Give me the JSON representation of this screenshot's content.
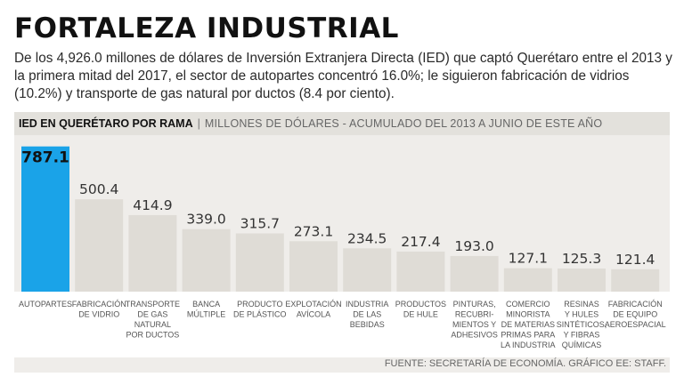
{
  "title": "FORTALEZA INDUSTRIAL",
  "subtitle": "De los 4,926.0 millones de dólares de Inversión Extranjera Directa (IED) que captó Querétaro entre el 2013 y la primera mitad del 2017, el sector de autopartes concentró 16.0%; le siguieron fabricación de vidrios (10.2%) y transporte de gas natural por ductos (8.4 por ciento).",
  "header": {
    "bold": "IED EN QUERÉTARO POR RAMA",
    "separator": "|",
    "light": "MILLONES DE DÓLARES - ACUMULADO DEL 2013 A JUNIO DE ESTE AÑO"
  },
  "colors": {
    "highlight": "#1aa3e8",
    "bar": "#dfdcd6",
    "background": "#efedea"
  },
  "chart_data": {
    "type": "bar",
    "title": "IED en Querétaro por rama",
    "ylabel": "Millones de dólares",
    "ylim": [
      0,
      800
    ],
    "categories": [
      [
        "AUTOPARTES"
      ],
      [
        "FABRICACIÓN",
        "DE VIDRIO"
      ],
      [
        "TRANSPORTE",
        "DE GAS",
        "NATURAL",
        "POR DUCTOS"
      ],
      [
        "BANCA",
        "MÚLTIPLE"
      ],
      [
        "PRODUCTO",
        "DE PLÁSTICO"
      ],
      [
        "EXPLOTACIÓN",
        "AVÍCOLA"
      ],
      [
        "INDUSTRIA",
        "DE LAS",
        "BEBIDAS"
      ],
      [
        "PRODUCTOS",
        "DE HULE"
      ],
      [
        "PINTURAS,",
        "RECUBRI-",
        "MIENTOS Y",
        "ADHESIVOS"
      ],
      [
        "COMERCIO",
        "MINORISTA",
        "DE MATERIAS",
        "PRIMAS PARA",
        "LA INDUSTRIA"
      ],
      [
        "RESINAS",
        "Y HULES",
        "SINTÉTICOS,",
        "Y FIBRAS",
        "QUÍMICAS"
      ],
      [
        "FABRICACIÓN",
        "DE EQUIPO",
        "AEROESPACIAL"
      ]
    ],
    "values": [
      787.1,
      500.4,
      414.9,
      339.0,
      315.7,
      273.1,
      234.5,
      217.4,
      193.0,
      127.1,
      125.3,
      121.4
    ],
    "labels": [
      "787.1",
      "500.4",
      "414.9",
      "339.0",
      "315.7",
      "273.1",
      "234.5",
      "217.4",
      "193.0",
      "127.1",
      "125.3",
      "121.4"
    ],
    "highlight_index": 0
  },
  "footer": "FUENTE: SECRETARÍA DE ECONOMÍA. GRÁFICO EE: STAFF."
}
